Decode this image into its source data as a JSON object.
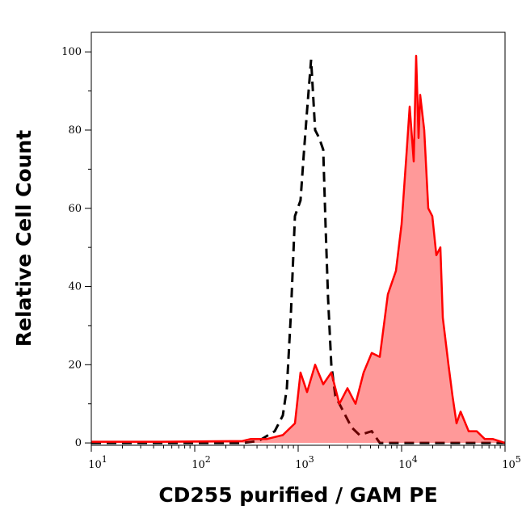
{
  "chart_data": {
    "type": "area",
    "title": "",
    "xlabel": "CD255 purified / GAM PE",
    "ylabel": "Relative Cell Count",
    "x_scale": "log",
    "xlim": [
      10,
      100000
    ],
    "ylim": [
      -0.6,
      105
    ],
    "x_ticks": [
      10,
      100,
      1000,
      10000,
      100000
    ],
    "x_tick_labels": [
      {
        "base": "10",
        "exp": "1"
      },
      {
        "base": "10",
        "exp": "2"
      },
      {
        "base": "10",
        "exp": "3"
      },
      {
        "base": "10",
        "exp": "4"
      },
      {
        "base": "10",
        "exp": "5"
      }
    ],
    "y_ticks": [
      0,
      20,
      40,
      60,
      80,
      100
    ],
    "y_tick_labels": [
      "0",
      "20",
      "40",
      "60",
      "80",
      "100"
    ],
    "grid": false,
    "series": [
      {
        "style": "dashed",
        "color": "#000000",
        "x": [
          10,
          48,
          289,
          414,
          593,
          711,
          778,
          851,
          931,
          1054,
          1135,
          1219,
          1334,
          1459,
          1596,
          1746,
          1845,
          1946,
          2089,
          2286,
          2740,
          3281,
          3926,
          5140,
          6152,
          10000,
          100000
        ],
        "y": [
          0,
          0,
          0,
          0.5,
          3,
          7,
          14,
          33,
          58,
          62,
          74,
          85,
          98,
          80,
          78,
          75,
          55,
          37,
          20,
          12,
          8,
          4,
          2,
          3,
          0,
          0,
          0
        ]
      },
      {
        "style": "filled",
        "color": "#ff0000",
        "fill": "#ff9999",
        "x": [
          10,
          48,
          289,
          346,
          495,
          711,
          931,
          1054,
          1219,
          1459,
          1746,
          2089,
          2501,
          2997,
          3589,
          4295,
          5140,
          6152,
          7362,
          8810,
          10000,
          11150,
          11970,
          13100,
          13830,
          14590,
          15130,
          16560,
          18110,
          19820,
          21680,
          23710,
          25030,
          28380,
          31050,
          33960,
          37150,
          44480,
          53300,
          63800,
          76400,
          100000
        ],
        "y": [
          0.3,
          0.3,
          0.5,
          1,
          1,
          2,
          5,
          18,
          13,
          20,
          15,
          18,
          10,
          14,
          10,
          18,
          23,
          22,
          38,
          44,
          56,
          74,
          86,
          72,
          99,
          78,
          89,
          80,
          60,
          58,
          48,
          50,
          32,
          20,
          12,
          5,
          8,
          3,
          3,
          1,
          1,
          0
        ]
      }
    ]
  }
}
